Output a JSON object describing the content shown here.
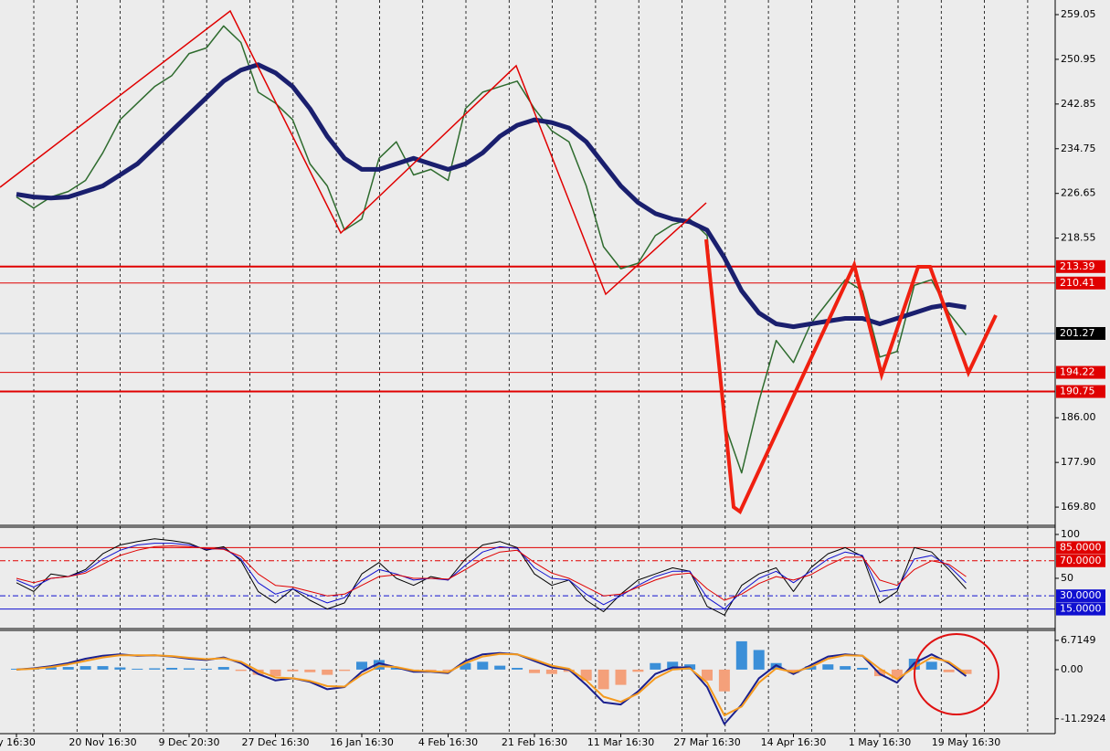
{
  "chart_data": [
    {
      "type": "line",
      "grid": true,
      "ylim": [
        166.5,
        261.7
      ],
      "yticks": [
        259.05,
        250.95,
        242.85,
        234.75,
        226.65,
        218.55,
        {
          "value": 186,
          "label": "186.00"
        },
        {
          "value": 177.9,
          "label": "177.90"
        },
        {
          "value": 169.8,
          "label": "169.80"
        }
      ],
      "hlines": [
        {
          "value": 213.39,
          "color": "#e00000",
          "width": 2,
          "label_bg": "#e00000"
        },
        {
          "value": 210.41,
          "color": "#e00000",
          "width": 1,
          "label_bg": "#e00000"
        },
        {
          "value": 201.27,
          "color": "#6a8fbf",
          "width": 1,
          "label_bg": "#000000"
        },
        {
          "value": 194.22,
          "color": "#e00000",
          "width": 1,
          "label_bg": "#e00000"
        },
        {
          "value": 190.75,
          "color": "#e00000",
          "width": 2,
          "label_bg": "#e00000"
        }
      ],
      "series": [
        {
          "color": "#2e6b2e",
          "width": 1.5,
          "values": [
            226,
            224,
            226,
            227,
            229,
            234,
            240,
            243,
            246,
            248,
            252,
            253,
            257,
            254,
            245,
            243,
            240,
            232,
            228,
            220,
            222,
            233,
            236,
            230,
            231,
            229,
            242,
            245,
            246,
            247,
            242,
            238,
            236,
            228,
            217,
            213,
            214,
            219,
            221,
            222,
            219,
            185,
            176,
            189,
            200,
            196,
            203,
            207,
            211,
            209,
            197,
            198,
            210,
            211,
            205,
            201,
            null,
            null,
            null,
            null,
            null
          ]
        },
        {
          "color": "#1a1f6e",
          "width": 5,
          "values": [
            226.5,
            226,
            225.8,
            226,
            227,
            228,
            230,
            232,
            235,
            238,
            241,
            244,
            247,
            249,
            250,
            248.5,
            246,
            242,
            237,
            233,
            231,
            231,
            232,
            233,
            232,
            231,
            232,
            234,
            237,
            239,
            240,
            239.5,
            238.5,
            236,
            232,
            228,
            225,
            223,
            222,
            221.5,
            220,
            215,
            209,
            205,
            203,
            202.5,
            203,
            203.5,
            204,
            204,
            203,
            204,
            205,
            206,
            206.5,
            206,
            null,
            null,
            null,
            null,
            null
          ]
        }
      ]
    },
    {
      "type": "line",
      "ylim": [
        -7.3,
        108.3
      ],
      "yticks": [
        100,
        50
      ],
      "hlines": [
        {
          "value": 85,
          "label": "85.0000",
          "color": "#e00000",
          "style": "solid",
          "label_bg": "#e00000"
        },
        {
          "value": 70,
          "label": "70.0000",
          "color": "#e00000",
          "style": "dashdot",
          "label_bg": "#e00000"
        },
        {
          "value": 30,
          "label": "30.0000",
          "color": "#1010d0",
          "style": "dashdot",
          "label_bg": "#1010d0"
        },
        {
          "value": 15,
          "label": "15.0000",
          "color": "#1010d0",
          "style": "solid",
          "label_bg": "#1010d0"
        }
      ],
      "series": [
        {
          "color": "#000000",
          "width": 1,
          "values": [
            45,
            35,
            55,
            52,
            60,
            78,
            88,
            92,
            95,
            93,
            90,
            82,
            86,
            70,
            35,
            22,
            38,
            25,
            15,
            22,
            55,
            68,
            50,
            42,
            52,
            48,
            72,
            88,
            92,
            85,
            55,
            42,
            48,
            25,
            12,
            32,
            48,
            55,
            62,
            58,
            18,
            8,
            42,
            55,
            62,
            35,
            62,
            78,
            85,
            75,
            22,
            35,
            85,
            80,
            60,
            38,
            null,
            null,
            null,
            null,
            null
          ]
        },
        {
          "color": "#1010d0",
          "width": 1,
          "values": [
            48,
            40,
            50,
            52,
            58,
            72,
            82,
            88,
            90,
            90,
            88,
            83,
            84,
            72,
            45,
            32,
            38,
            30,
            22,
            28,
            48,
            60,
            55,
            48,
            50,
            48,
            65,
            80,
            86,
            84,
            62,
            50,
            48,
            32,
            20,
            30,
            42,
            52,
            58,
            58,
            28,
            15,
            35,
            50,
            58,
            45,
            58,
            72,
            80,
            76,
            35,
            38,
            72,
            76,
            64,
            45,
            null,
            null,
            null,
            null,
            null
          ]
        },
        {
          "color": "#e00000",
          "width": 1,
          "values": [
            50,
            45,
            50,
            52,
            56,
            66,
            76,
            82,
            86,
            87,
            86,
            84,
            83,
            75,
            55,
            42,
            40,
            35,
            30,
            32,
            42,
            52,
            54,
            50,
            50,
            49,
            60,
            72,
            80,
            82,
            68,
            56,
            50,
            40,
            30,
            32,
            40,
            48,
            54,
            56,
            38,
            25,
            32,
            44,
            52,
            48,
            54,
            65,
            74,
            74,
            48,
            42,
            60,
            70,
            66,
            52,
            null,
            null,
            null,
            null,
            null
          ]
        }
      ]
    },
    {
      "type": "combo",
      "ylim": [
        -14.7,
        9.0
      ],
      "yticks": [
        6.7149,
        {
          "value": 0,
          "label": "0.00"
        },
        -11.2924
      ],
      "categories": [
        "y 16:30",
        null,
        null,
        null,
        null,
        "20 Nov 16:30",
        null,
        null,
        null,
        null,
        "9 Dec 20:30",
        null,
        null,
        null,
        null,
        "27 Dec 16:30",
        null,
        null,
        null,
        null,
        "16 Jan 16:30",
        null,
        null,
        null,
        null,
        "4 Feb 16:30",
        null,
        null,
        null,
        null,
        "21 Feb 16:30",
        null,
        null,
        null,
        null,
        "11 Mar 16:30",
        null,
        null,
        null,
        null,
        "27 Mar 16:30",
        null,
        null,
        null,
        null,
        "14 Apr 16:30",
        null,
        null,
        null,
        null,
        "1 May 16:30",
        null,
        null,
        null,
        null,
        "19 May 16:30",
        null,
        null,
        null,
        null,
        null
      ],
      "series": [
        {
          "kind": "bar",
          "pos_color": "#3b8fd8",
          "neg_color": "#f4a07a",
          "values": [
            0.2,
            0.3,
            0.5,
            0.6,
            0.8,
            0.8,
            0.5,
            0.2,
            0.3,
            0.4,
            0.3,
            0.2,
            0.6,
            -0.3,
            -1.2,
            -1.5,
            -0.4,
            -0.6,
            -1.2,
            -0.3,
            1.8,
            2.2,
            0.5,
            -0.3,
            -0.2,
            -0.3,
            1.5,
            1.8,
            0.9,
            0.4,
            -0.8,
            -1.0,
            -0.5,
            -2.5,
            -4.5,
            -3.5,
            -0.5,
            1.5,
            1.8,
            1.2,
            -2.5,
            -5.0,
            6.5,
            4.5,
            1.5,
            -0.8,
            0.8,
            1.2,
            0.8,
            0.4,
            -1.5,
            -2.0,
            2.5,
            1.8,
            -0.6,
            -1.0,
            null,
            null,
            null,
            null,
            null
          ]
        },
        {
          "kind": "line",
          "color": "#1a1f8e",
          "width": 2,
          "values": [
            0,
            0.3,
            0.8,
            1.5,
            2.5,
            3.2,
            3.5,
            3.2,
            3.3,
            3.0,
            2.5,
            2.2,
            2.8,
            1.5,
            -1.0,
            -2.5,
            -2.0,
            -2.8,
            -4.5,
            -4.0,
            -0.5,
            1.5,
            0.5,
            -0.5,
            -0.5,
            -0.8,
            2.0,
            3.5,
            3.8,
            3.5,
            2.0,
            0.5,
            0.0,
            -3.5,
            -7.5,
            -8.0,
            -5.0,
            -1.0,
            0.5,
            0.5,
            -4.0,
            -12.5,
            -8.0,
            -2.0,
            1.0,
            -1.0,
            1.0,
            3.0,
            3.5,
            3.2,
            -1.0,
            -3.0,
            1.5,
            3.5,
            1.5,
            -1.5,
            null,
            null,
            null,
            null,
            null
          ]
        },
        {
          "kind": "line",
          "color": "#f59a1e",
          "width": 2,
          "values": [
            0,
            0.2,
            0.6,
            1.2,
            2.0,
            2.8,
            3.3,
            3.3,
            3.3,
            3.1,
            2.7,
            2.4,
            2.6,
            1.8,
            -0.3,
            -1.8,
            -2.0,
            -2.6,
            -3.8,
            -3.9,
            -1.2,
            0.8,
            0.6,
            -0.2,
            -0.4,
            -0.6,
            1.5,
            3.0,
            3.6,
            3.5,
            2.3,
            0.9,
            0.2,
            -2.5,
            -6.2,
            -7.4,
            -5.5,
            -2.0,
            0.0,
            0.3,
            -3.0,
            -10.5,
            -8.5,
            -3.0,
            0.3,
            -0.6,
            0.6,
            2.5,
            3.3,
            3.2,
            0.2,
            -2.2,
            0.5,
            2.8,
            1.8,
            -1.0,
            null,
            null,
            null,
            null,
            null
          ]
        }
      ]
    }
  ]
}
